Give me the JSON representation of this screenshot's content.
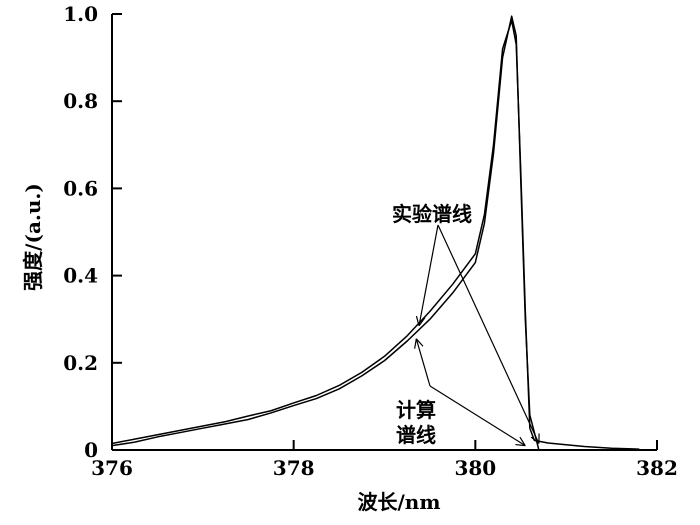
{
  "chart_data": {
    "type": "line",
    "xlabel": "波长/nm",
    "ylabel": "强度/(a.u.)",
    "xlim": [
      376,
      382
    ],
    "ylim": [
      0,
      1.0
    ],
    "x_ticks": [
      "376",
      "378",
      "380",
      "382"
    ],
    "y_ticks": [
      "0",
      "0.2",
      "0.4",
      "0.6",
      "0.8",
      "1.0"
    ],
    "annotations": [
      "实验谱线",
      "计算",
      "谱线"
    ],
    "series": [
      {
        "points": [
          [
            376.0,
            0.01
          ],
          [
            376.25,
            0.018
          ],
          [
            376.5,
            0.03
          ],
          [
            376.75,
            0.04
          ],
          [
            377.0,
            0.05
          ],
          [
            377.25,
            0.06
          ],
          [
            377.5,
            0.07
          ],
          [
            377.75,
            0.085
          ],
          [
            378.0,
            0.102
          ],
          [
            378.25,
            0.118
          ],
          [
            378.5,
            0.14
          ],
          [
            378.75,
            0.17
          ],
          [
            379.0,
            0.205
          ],
          [
            379.25,
            0.25
          ],
          [
            379.5,
            0.3
          ],
          [
            379.75,
            0.36
          ],
          [
            380.0,
            0.43
          ],
          [
            380.1,
            0.52
          ],
          [
            380.2,
            0.68
          ],
          [
            380.3,
            0.9
          ],
          [
            380.4,
            0.995
          ],
          [
            380.45,
            0.95
          ],
          [
            380.5,
            0.62
          ],
          [
            380.55,
            0.3
          ],
          [
            380.6,
            0.08
          ],
          [
            380.7,
            0.0
          ],
          [
            381.0,
            0.0
          ]
        ]
      },
      {
        "points": [
          [
            376.0,
            0.015
          ],
          [
            376.25,
            0.025
          ],
          [
            376.5,
            0.035
          ],
          [
            376.75,
            0.045
          ],
          [
            377.0,
            0.055
          ],
          [
            377.25,
            0.065
          ],
          [
            377.5,
            0.078
          ],
          [
            377.75,
            0.09
          ],
          [
            378.0,
            0.108
          ],
          [
            378.25,
            0.125
          ],
          [
            378.5,
            0.148
          ],
          [
            378.75,
            0.178
          ],
          [
            379.0,
            0.215
          ],
          [
            379.25,
            0.262
          ],
          [
            379.5,
            0.318
          ],
          [
            379.75,
            0.38
          ],
          [
            380.0,
            0.45
          ],
          [
            380.1,
            0.54
          ],
          [
            380.2,
            0.7
          ],
          [
            380.3,
            0.92
          ],
          [
            380.4,
            0.985
          ],
          [
            380.45,
            0.93
          ],
          [
            380.5,
            0.64
          ],
          [
            380.55,
            0.32
          ],
          [
            380.6,
            0.05
          ],
          [
            380.65,
            0.022
          ],
          [
            380.8,
            0.016
          ],
          [
            381.0,
            0.012
          ],
          [
            381.2,
            0.008
          ],
          [
            381.5,
            0.004
          ],
          [
            381.8,
            0.002
          ]
        ]
      }
    ]
  }
}
